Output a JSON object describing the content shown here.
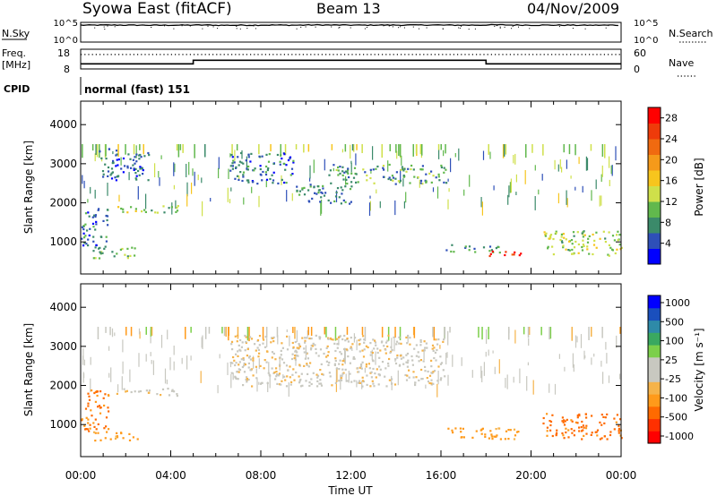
{
  "header": {
    "station": "Syowa East (fitACF)",
    "beam": "Beam 13",
    "date": "04/Nov/2009"
  },
  "strips": {
    "nsky_label": "N.Sky",
    "nsky_top": "10^5",
    "nsky_bottom": "10^0",
    "nsearch_label": "N.Search",
    "nsearch_top": "10^5",
    "nsearch_bottom": "10^0",
    "freq_label_line1": "Freq.",
    "freq_label_line2": "[MHz]",
    "freq_top": "18",
    "freq_bottom": "8",
    "nave_label": "Nave",
    "nave_top": "60",
    "nave_bottom": "0",
    "cpid_label": "CPID",
    "cpid_value": "normal (fast) 151"
  },
  "colors": {
    "power_scale": [
      "#0000ff",
      "#2e4fb8",
      "#3b8a6a",
      "#61b84d",
      "#cfe04a",
      "#f7c51d",
      "#f59a1a",
      "#f06a10",
      "#ee3b0a",
      "#ff0000"
    ],
    "velocity_scale": [
      "#ff0000",
      "#ff3000",
      "#ff6a00",
      "#ff9a1a",
      "#f5b34a",
      "#c8c8c0",
      "#c8c8c0",
      "#7ccf4a",
      "#3aa860",
      "#2e8aa8",
      "#1a4fbd",
      "#0000ff"
    ],
    "gray": "#c8c8c0"
  },
  "chart_data": [
    {
      "type": "line",
      "panel": "sky-noise",
      "title": "",
      "ylabel": "N.Sky",
      "yscale": "log",
      "ylim": [
        1,
        100000
      ],
      "x": [
        0,
        1,
        2,
        3,
        4,
        5,
        6,
        7,
        8,
        9,
        10,
        11,
        12,
        13,
        14,
        15,
        16,
        17,
        18,
        19,
        20,
        21,
        22,
        23,
        24
      ],
      "series": [
        {
          "name": "N.Sky",
          "values": [
            20000,
            21000,
            20000,
            19000,
            20000,
            21000,
            19000,
            20000,
            21000,
            20000,
            22000,
            21000,
            20000,
            21000,
            21000,
            22000,
            20000,
            20000,
            23000,
            21000,
            20000,
            20000,
            19000,
            20000,
            20000
          ]
        }
      ]
    },
    {
      "type": "line",
      "panel": "frequency",
      "ylabel": "Freq. [MHz]",
      "ylim": [
        8,
        18
      ],
      "y2label": "Nave",
      "y2lim": [
        0,
        60
      ],
      "x": [
        0,
        5,
        5,
        18,
        18,
        24
      ],
      "series": [
        {
          "name": "Freq.",
          "values": [
            10.6,
            10.6,
            12.4,
            12.4,
            10.6,
            10.6
          ]
        },
        {
          "name": "Nave",
          "values": [
            44,
            44,
            44,
            44,
            44,
            44
          ]
        }
      ]
    },
    {
      "type": "heatmap",
      "panel": "power",
      "ylabel": "Slant Range [km]",
      "xlim": [
        0,
        24
      ],
      "ylim": [
        180,
        4600
      ],
      "yticks": [
        "1000",
        "2000",
        "3000",
        "4000"
      ],
      "colorbar": {
        "label": "Power [dB]",
        "ticks": [
          "4",
          "8",
          "12",
          "16",
          "20",
          "24",
          "28"
        ],
        "range": [
          0,
          30
        ]
      },
      "regions": [
        {
          "t0": 0.0,
          "t1": 1.2,
          "r0": 850,
          "r1": 1900,
          "value": 6
        },
        {
          "t0": 0.5,
          "t1": 2.5,
          "r0": 600,
          "r1": 900,
          "value": 10
        },
        {
          "t0": 1.5,
          "t1": 4.3,
          "r0": 1750,
          "r1": 1950,
          "value": 12
        },
        {
          "t0": 0.8,
          "t1": 3.0,
          "r0": 2600,
          "r1": 3400,
          "value": 5
        },
        {
          "t0": 6.6,
          "t1": 9.5,
          "r0": 2500,
          "r1": 3300,
          "value": 6
        },
        {
          "t0": 9.5,
          "t1": 12.0,
          "r0": 2000,
          "r1": 2500,
          "value": 7
        },
        {
          "t0": 11.0,
          "t1": 16.2,
          "r0": 2500,
          "r1": 3000,
          "value": 9
        },
        {
          "t0": 16.2,
          "t1": 18.6,
          "r0": 750,
          "r1": 950,
          "value": 8
        },
        {
          "t0": 18.0,
          "t1": 19.6,
          "r0": 650,
          "r1": 800,
          "value": 26
        },
        {
          "t0": 20.5,
          "t1": 24.0,
          "r0": 650,
          "r1": 1300,
          "value": 12
        }
      ]
    },
    {
      "type": "heatmap",
      "panel": "velocity",
      "ylabel": "Slant Range [km]",
      "xlim": [
        0,
        24
      ],
      "ylim": [
        180,
        4600
      ],
      "yticks": [
        "1000",
        "2000",
        "3000",
        "4000"
      ],
      "xticks": [
        "00:00",
        "04:00",
        "08:00",
        "12:00",
        "16:00",
        "20:00",
        "00:00"
      ],
      "xlabel": "Time UT",
      "colorbar": {
        "label": "Velocity [m s⁻¹]",
        "ticks": [
          "1000",
          "500",
          "100",
          "25",
          "-25",
          "-100",
          "-500",
          "-1000"
        ],
        "range": [
          -1000,
          1000
        ]
      },
      "regions": [
        {
          "t0": 0.0,
          "t1": 1.2,
          "r0": 850,
          "r1": 1900,
          "value": -300
        },
        {
          "t0": 0.5,
          "t1": 2.5,
          "r0": 600,
          "r1": 850,
          "value": -150
        },
        {
          "t0": 1.5,
          "t1": 4.3,
          "r0": 1750,
          "r1": 1950,
          "value": 0
        },
        {
          "t0": 6.6,
          "t1": 16.2,
          "r0": 2000,
          "r1": 3300,
          "value": 0
        },
        {
          "t0": 16.2,
          "t1": 19.6,
          "r0": 650,
          "r1": 950,
          "value": -150
        },
        {
          "t0": 20.5,
          "t1": 24.0,
          "r0": 650,
          "r1": 1300,
          "value": -350
        }
      ]
    }
  ]
}
